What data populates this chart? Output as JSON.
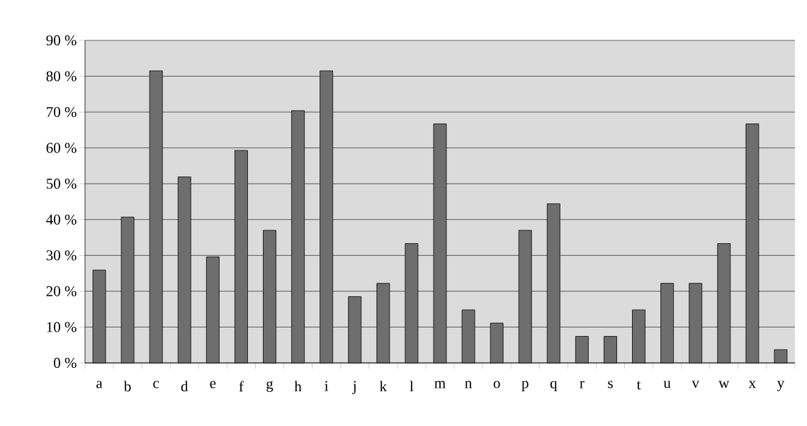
{
  "chart_data": {
    "type": "bar",
    "categories": [
      "a",
      "b",
      "c",
      "d",
      "e",
      "f",
      "g",
      "h",
      "i",
      "j",
      "k",
      "l",
      "m",
      "n",
      "o",
      "p",
      "q",
      "r",
      "s",
      "t",
      "u",
      "v",
      "w",
      "x",
      "y"
    ],
    "values": [
      25.9,
      40.7,
      81.5,
      51.9,
      29.6,
      59.3,
      37.0,
      70.4,
      81.5,
      18.5,
      22.2,
      33.3,
      66.7,
      14.8,
      11.1,
      37.0,
      44.4,
      7.4,
      7.4,
      14.8,
      22.2,
      22.2,
      33.3,
      66.7,
      3.7
    ],
    "color": "#6e6e6e",
    "ylim": [
      0,
      90
    ],
    "yticks": [
      {
        "value": 0,
        "label": "0 %"
      },
      {
        "value": 10,
        "label": "10 %"
      },
      {
        "value": 20,
        "label": "20 %"
      },
      {
        "value": 30,
        "label": "30 %"
      },
      {
        "value": 40,
        "label": "40 %"
      },
      {
        "value": 50,
        "label": "50 %"
      },
      {
        "value": 60,
        "label": "60 %"
      },
      {
        "value": 70,
        "label": "70 %"
      },
      {
        "value": 80,
        "label": "80 %"
      },
      {
        "value": 90,
        "label": "90 %"
      }
    ],
    "grid": "y"
  }
}
